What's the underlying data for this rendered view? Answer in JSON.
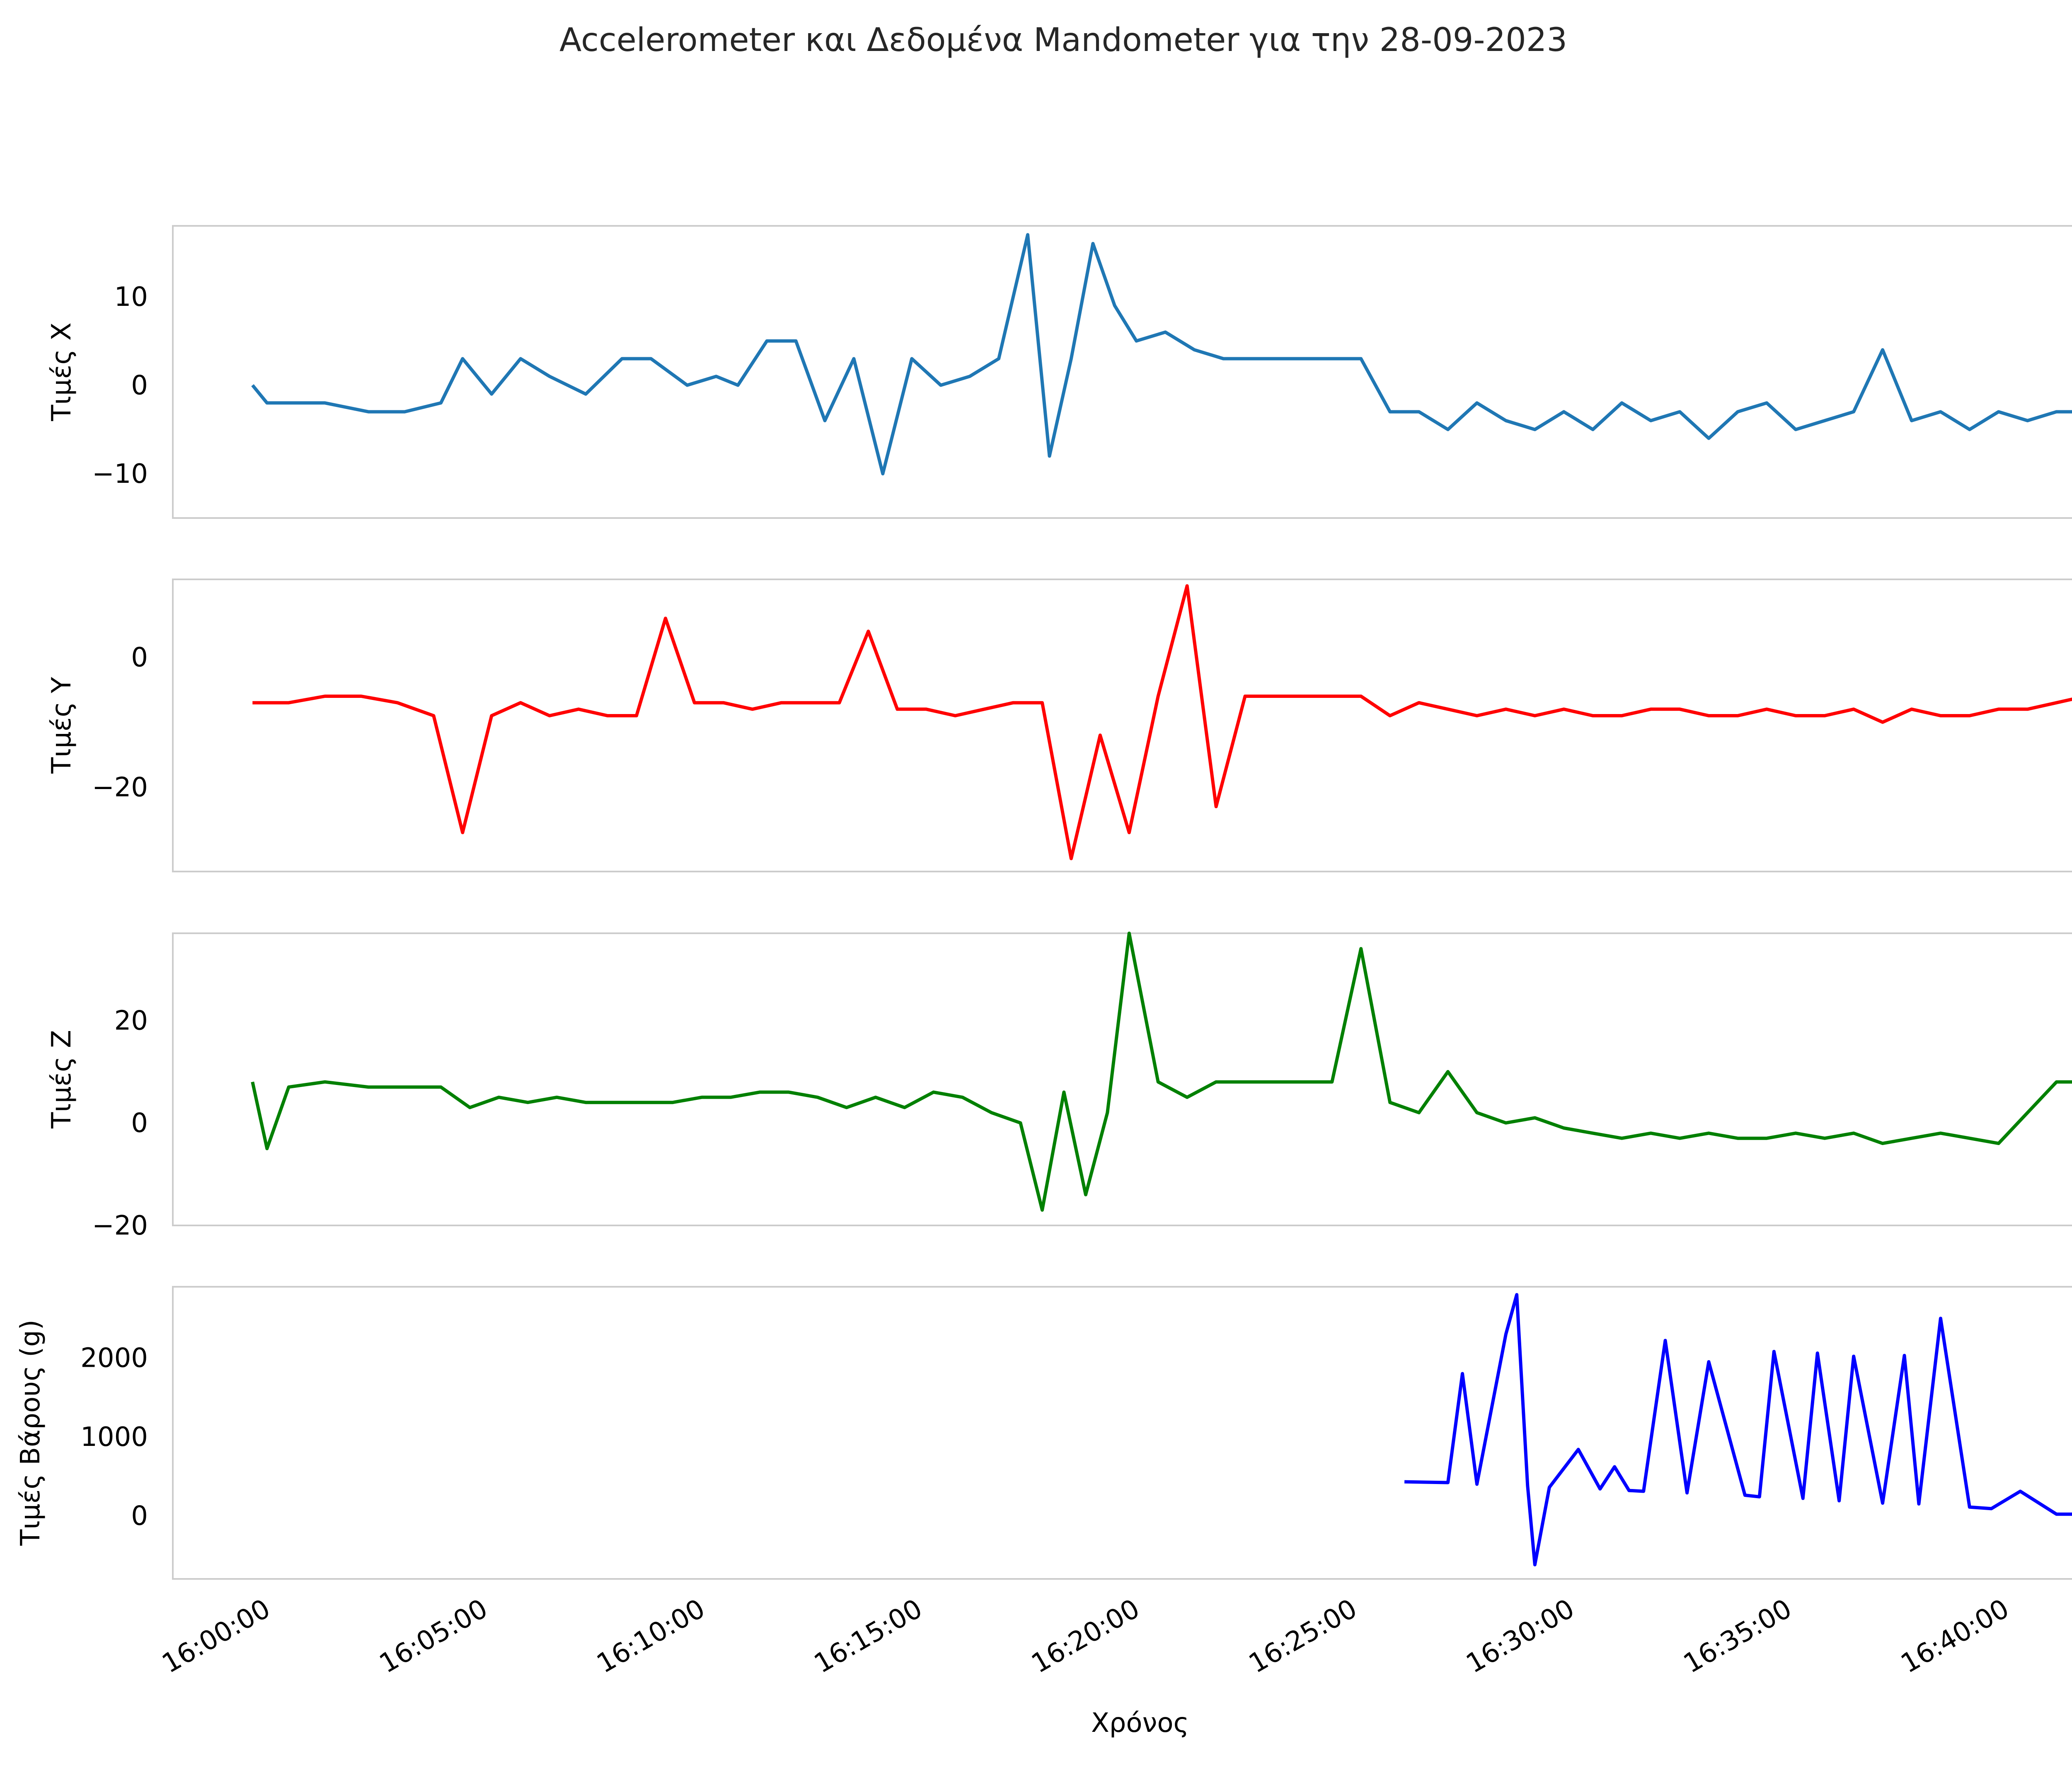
{
  "chart_data": {
    "type": "line",
    "title": "Accelerometer και Δεδομένα Mandometer για την 28-09-2023",
    "xlabel": "Χρόνος",
    "x_ticks": [
      "16:00:00",
      "16:05:00",
      "16:10:00",
      "16:15:00",
      "16:20:00",
      "16:25:00",
      "16:30:00",
      "16:35:00",
      "16:40:00"
    ],
    "x_range": [
      "15:58:00",
      "16:42:30"
    ],
    "grid": false,
    "legend": "none",
    "panels": [
      {
        "ylabel": "Τιμές X",
        "ylim": [
          -15,
          18
        ],
        "yticks": [
          10,
          0,
          -10
        ],
        "ytick_labels": [
          "10",
          "0",
          "−10"
        ],
        "color": "#1f77b4",
        "series": [
          {
            "x": [
              "15:59:50",
              "16:00:10",
              "16:00:40",
              "16:01:30",
              "16:02:30",
              "16:03:20",
              "16:04:10",
              "16:04:40",
              "16:05:20",
              "16:06:00",
              "16:06:40",
              "16:07:30",
              "16:08:20",
              "16:09:00",
              "16:09:50",
              "16:10:30",
              "16:11:00",
              "16:11:40",
              "16:12:20",
              "16:13:00",
              "16:13:40",
              "16:14:20",
              "16:15:00",
              "16:15:40",
              "16:16:20",
              "16:17:00",
              "16:17:40",
              "16:18:10",
              "16:18:40",
              "16:19:10",
              "16:19:40",
              "16:20:10",
              "16:20:50",
              "16:21:30",
              "16:22:10",
              "16:23:00",
              "16:23:50",
              "16:24:40",
              "16:25:20",
              "16:26:00",
              "16:26:40",
              "16:27:20",
              "16:28:00",
              "16:28:40",
              "16:29:20",
              "16:30:00",
              "16:30:40",
              "16:31:20",
              "16:32:00",
              "16:32:40",
              "16:33:20",
              "16:34:00",
              "16:34:40",
              "16:35:20",
              "16:36:00",
              "16:36:40",
              "16:37:20",
              "16:38:00",
              "16:38:40",
              "16:39:20",
              "16:40:00",
              "16:40:40",
              "16:41:20",
              "16:42:00"
            ],
            "values": [
              0,
              -2,
              -2,
              -2,
              -3,
              -3,
              -2,
              3,
              -1,
              3,
              1,
              -1,
              3,
              3,
              0,
              1,
              0,
              5,
              5,
              -4,
              3,
              -10,
              3,
              0,
              1,
              3,
              17,
              -8,
              3,
              16,
              9,
              5,
              6,
              4,
              3,
              3,
              3,
              3,
              3,
              -3,
              -3,
              -5,
              -2,
              -4,
              -5,
              -3,
              -5,
              -2,
              -4,
              -3,
              -6,
              -3,
              -2,
              -5,
              -4,
              -3,
              4,
              -4,
              -3,
              -5,
              -3,
              -4,
              -3,
              -3
            ]
          }
        ]
      },
      {
        "ylabel": "Τιμές Y",
        "ylim": [
          -33,
          12
        ],
        "yticks": [
          0,
          -20
        ],
        "ytick_labels": [
          "0",
          "−20"
        ],
        "color": "#ff0000",
        "series": [
          {
            "x": [
              "15:59:50",
              "16:00:40",
              "16:01:30",
              "16:02:20",
              "16:03:10",
              "16:04:00",
              "16:04:40",
              "16:05:20",
              "16:06:00",
              "16:06:40",
              "16:07:20",
              "16:08:00",
              "16:08:40",
              "16:09:20",
              "16:10:00",
              "16:10:40",
              "16:11:20",
              "16:12:00",
              "16:12:40",
              "16:13:20",
              "16:14:00",
              "16:14:40",
              "16:15:20",
              "16:16:00",
              "16:16:40",
              "16:17:20",
              "16:18:00",
              "16:18:40",
              "16:19:20",
              "16:20:00",
              "16:20:40",
              "16:21:20",
              "16:22:00",
              "16:22:40",
              "16:23:20",
              "16:24:00",
              "16:24:40",
              "16:25:20",
              "16:26:00",
              "16:26:40",
              "16:27:20",
              "16:28:00",
              "16:28:40",
              "16:29:20",
              "16:30:00",
              "16:30:40",
              "16:31:20",
              "16:32:00",
              "16:32:40",
              "16:33:20",
              "16:34:00",
              "16:34:40",
              "16:35:20",
              "16:36:00",
              "16:36:40",
              "16:37:20",
              "16:38:00",
              "16:38:40",
              "16:39:20",
              "16:40:00",
              "16:40:40",
              "16:41:20",
              "16:42:00"
            ],
            "values": [
              -7,
              -7,
              -6,
              -6,
              -7,
              -9,
              -27,
              -9,
              -7,
              -9,
              -8,
              -9,
              -9,
              6,
              -7,
              -7,
              -8,
              -7,
              -7,
              -7,
              4,
              -8,
              -8,
              -9,
              -8,
              -7,
              -7,
              -31,
              -12,
              -27,
              -6,
              11,
              -23,
              -6,
              -6,
              -6,
              -6,
              -6,
              -9,
              -7,
              -8,
              -9,
              -8,
              -9,
              -8,
              -9,
              -9,
              -8,
              -8,
              -9,
              -9,
              -8,
              -9,
              -9,
              -8,
              -10,
              -8,
              -9,
              -9,
              -8,
              -8,
              -7,
              -6
            ]
          }
        ]
      },
      {
        "ylabel": "Τιμές Z",
        "ylim": [
          -20,
          37
        ],
        "yticks": [
          20,
          0,
          -20
        ],
        "ytick_labels": [
          "20",
          "0",
          "−20"
        ],
        "color": "#008000",
        "series": [
          {
            "x": [
              "15:59:50",
              "16:00:10",
              "16:00:40",
              "16:01:30",
              "16:02:30",
              "16:03:20",
              "16:04:10",
              "16:04:50",
              "16:05:30",
              "16:06:10",
              "16:06:50",
              "16:07:30",
              "16:08:10",
              "16:08:50",
              "16:09:30",
              "16:10:10",
              "16:10:50",
              "16:11:30",
              "16:12:10",
              "16:12:50",
              "16:13:30",
              "16:14:10",
              "16:14:50",
              "16:15:30",
              "16:16:10",
              "16:16:50",
              "16:17:30",
              "16:18:00",
              "16:18:30",
              "16:19:00",
              "16:19:30",
              "16:20:00",
              "16:20:40",
              "16:21:20",
              "16:22:00",
              "16:22:40",
              "16:23:20",
              "16:24:00",
              "16:24:40",
              "16:25:20",
              "16:26:00",
              "16:26:40",
              "16:27:20",
              "16:28:00",
              "16:28:40",
              "16:29:20",
              "16:30:00",
              "16:30:40",
              "16:31:20",
              "16:32:00",
              "16:32:40",
              "16:33:20",
              "16:34:00",
              "16:34:40",
              "16:35:20",
              "16:36:00",
              "16:36:40",
              "16:37:20",
              "16:38:00",
              "16:38:40",
              "16:39:20",
              "16:40:00",
              "16:40:40",
              "16:41:20",
              "16:42:00"
            ],
            "values": [
              8,
              -5,
              7,
              8,
              7,
              7,
              7,
              3,
              5,
              4,
              5,
              4,
              4,
              4,
              4,
              5,
              5,
              6,
              6,
              5,
              3,
              5,
              3,
              6,
              5,
              2,
              0,
              -17,
              6,
              -14,
              2,
              37,
              8,
              5,
              8,
              8,
              8,
              8,
              8,
              34,
              4,
              2,
              10,
              2,
              0,
              1,
              -1,
              -2,
              -3,
              -2,
              -3,
              -2,
              -3,
              -3,
              -2,
              -3,
              -2,
              -4,
              -3,
              -2,
              -3,
              -4,
              2,
              8,
              8
            ]
          }
        ]
      },
      {
        "ylabel": "Τιμές Βάρους (g)",
        "ylim": [
          -800,
          2900
        ],
        "yticks": [
          2000,
          1000,
          0
        ],
        "ytick_labels": [
          "2000",
          "1000",
          "0"
        ],
        "color": "#0000ff",
        "series": [
          {
            "x": [
              "16:26:20",
              "16:27:20",
              "16:27:40",
              "16:28:00",
              "16:28:40",
              "16:28:55",
              "16:29:10",
              "16:29:20",
              "16:29:40",
              "16:30:20",
              "16:30:50",
              "16:31:10",
              "16:31:30",
              "16:31:50",
              "16:32:20",
              "16:32:50",
              "16:33:20",
              "16:34:10",
              "16:34:30",
              "16:34:50",
              "16:35:30",
              "16:35:50",
              "16:36:20",
              "16:36:40",
              "16:37:20",
              "16:37:50",
              "16:38:10",
              "16:38:40",
              "16:39:20",
              "16:39:50",
              "16:40:30",
              "16:41:20",
              "16:42:00"
            ],
            "values": [
              430,
              420,
              1800,
              400,
              2300,
              2800,
              380,
              -620,
              360,
              840,
              340,
              620,
              320,
              310,
              2220,
              290,
              1950,
              260,
              240,
              2080,
              220,
              2060,
              190,
              2020,
              160,
              2030,
              150,
              2500,
              110,
              90,
              310,
              20,
              20
            ]
          }
        ]
      }
    ]
  }
}
